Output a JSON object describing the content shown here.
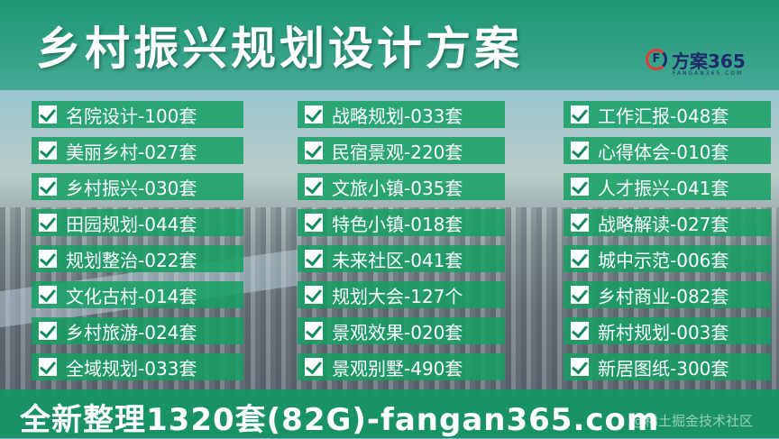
{
  "title": "乡村振兴规划设计方案",
  "logo": {
    "name": "方案365",
    "sub": "FANGAN365.COM",
    "mark": "F"
  },
  "columns": [
    [
      "名院设计-100套",
      "美丽乡村-027套",
      "乡村振兴-030套",
      "田园规划-044套",
      "规划整治-022套",
      "文化古村-014套",
      "乡村旅游-024套",
      "全域规划-033套"
    ],
    [
      "战略规划-033套",
      "民宿景观-220套",
      "文旅小镇-035套",
      "特色小镇-018套",
      "未来社区-041套",
      "规划大会-127个",
      "景观效果-020套",
      "景观别墅-490套"
    ],
    [
      "工作汇报-048套",
      "心得体会-010套",
      "人才振兴-041套",
      "战略解读-027套",
      "城中示范-006套",
      "乡村商业-082套",
      "新村规划-003套",
      "新居图纸-300套"
    ]
  ],
  "footer": "全新整理1320套(82G)-fangan365.com",
  "watermark": "@稀土掘金技术社区",
  "colors": {
    "accent": "#14a064",
    "logo": "#1f2a6b"
  }
}
